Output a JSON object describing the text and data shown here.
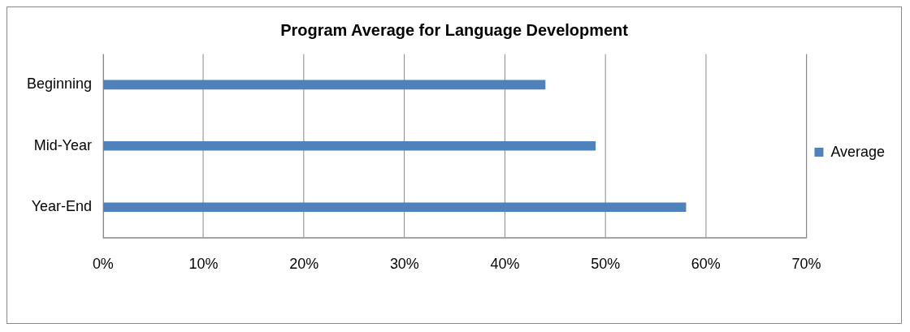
{
  "chart_data": {
    "type": "bar",
    "orientation": "horizontal",
    "title": "Program Average for Language Development",
    "categories": [
      "Beginning",
      "Mid-Year",
      "Year-End"
    ],
    "series": [
      {
        "name": "Average",
        "color": "#4f81bd",
        "values": [
          44,
          49,
          58
        ]
      }
    ],
    "xlim": [
      0,
      70
    ],
    "xticks": [
      {
        "value": 0,
        "label": "0%"
      },
      {
        "value": 10,
        "label": "10%"
      },
      {
        "value": 20,
        "label": "20%"
      },
      {
        "value": 30,
        "label": "30%"
      },
      {
        "value": 40,
        "label": "40%"
      },
      {
        "value": 50,
        "label": "50%"
      },
      {
        "value": 60,
        "label": "60%"
      },
      {
        "value": 70,
        "label": "70%"
      }
    ],
    "grid": "x",
    "legend": "right"
  }
}
